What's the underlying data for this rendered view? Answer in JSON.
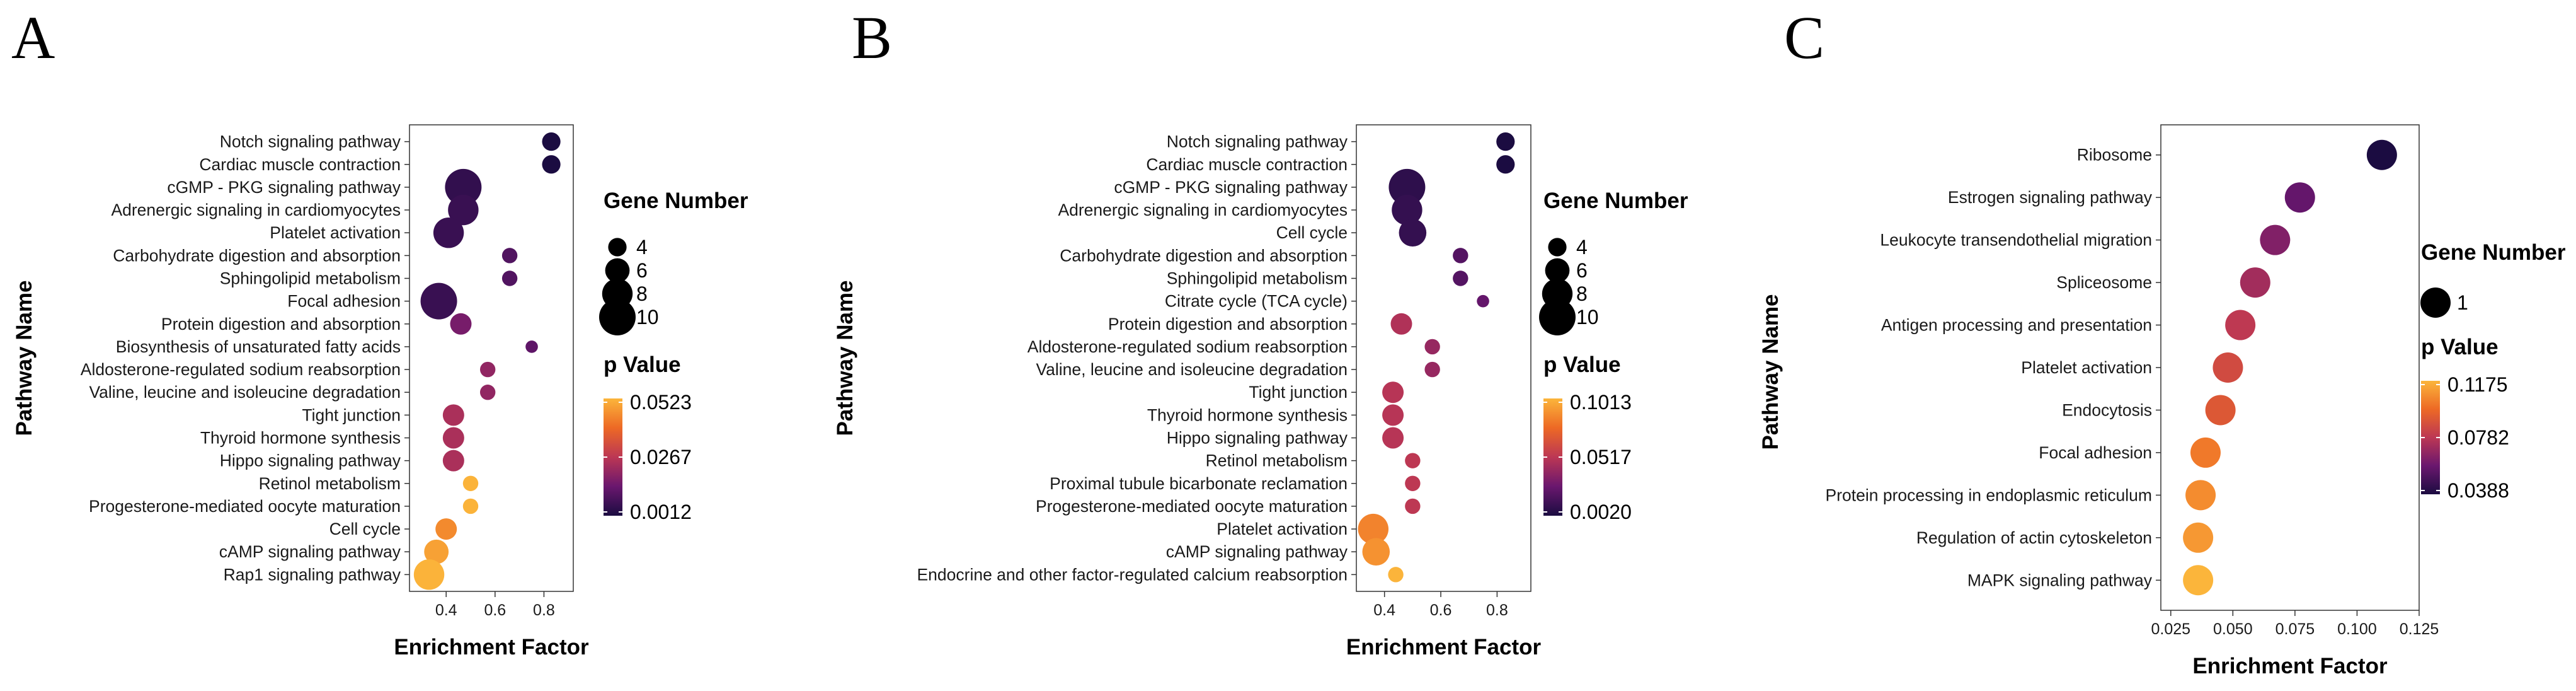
{
  "chart_data": [
    {
      "type": "scatter",
      "panel": "A",
      "xlabel": "Enrichment Factor",
      "ylabel": "Pathway Name",
      "xlim": [
        0.25,
        0.92
      ],
      "xticks": [
        0.4,
        0.6,
        0.8
      ],
      "xtick_labels": [
        "0.4",
        "0.6",
        "0.8"
      ],
      "p_range": [
        0.0012,
        0.0523
      ],
      "p_labels": [
        "0.0523",
        "0.0267",
        "0.0012"
      ],
      "legend_size_title": "Gene Number",
      "legend_sizes": [
        4,
        6,
        8,
        10
      ],
      "legend_size_labels": [
        "4",
        "6",
        "8",
        "10"
      ],
      "legend_color_title": "p Value",
      "categories": [
        "Notch signaling pathway",
        "Cardiac muscle contraction",
        "cGMP - PKG signaling pathway",
        "Adrenergic signaling in cardiomyocytes",
        "Platelet activation",
        "Carbohydrate digestion and absorption",
        "Sphingolipid metabolism",
        "Focal adhesion",
        "Protein digestion and absorption",
        "Biosynthesis of unsaturated fatty acids",
        "Aldosterone-regulated sodium reabsorption",
        "Valine, leucine and isoleucine degradation",
        "Tight junction",
        "Thyroid hormone synthesis",
        "Hippo signaling pathway",
        "Retinol metabolism",
        "Progesterone-mediated oocyte maturation",
        "Cell cycle",
        "cAMP signaling pathway",
        "Rap1 signaling pathway"
      ],
      "x": [
        0.83,
        0.83,
        0.47,
        0.47,
        0.41,
        0.66,
        0.66,
        0.37,
        0.46,
        0.75,
        0.57,
        0.57,
        0.43,
        0.43,
        0.43,
        0.5,
        0.5,
        0.4,
        0.36,
        0.33
      ],
      "gene_number": [
        4,
        4,
        10,
        8,
        8,
        3,
        3,
        10,
        5,
        2,
        3,
        3,
        5,
        5,
        5,
        3,
        3,
        5,
        6,
        8
      ],
      "p_value": [
        0.0012,
        0.0012,
        0.005,
        0.006,
        0.006,
        0.01,
        0.01,
        0.006,
        0.016,
        0.012,
        0.02,
        0.02,
        0.024,
        0.024,
        0.024,
        0.052,
        0.052,
        0.045,
        0.049,
        0.052
      ]
    },
    {
      "type": "scatter",
      "panel": "B",
      "xlabel": "Enrichment Factor",
      "ylabel": "Pathway Name",
      "xlim": [
        0.3,
        0.92
      ],
      "xticks": [
        0.4,
        0.6,
        0.8
      ],
      "xtick_labels": [
        "0.4",
        "0.6",
        "0.8"
      ],
      "p_range": [
        0.002,
        0.1013
      ],
      "p_labels": [
        "0.1013",
        "0.0517",
        "0.0020"
      ],
      "legend_size_title": "Gene Number",
      "legend_sizes": [
        4,
        6,
        8,
        10
      ],
      "legend_size_labels": [
        "4",
        "6",
        "8",
        "10"
      ],
      "legend_color_title": "p Value",
      "categories": [
        "Notch signaling pathway",
        "Cardiac muscle contraction",
        "cGMP - PKG signaling pathway",
        "Adrenergic signaling in cardiomyocytes",
        "Cell cycle",
        "Carbohydrate digestion and absorption",
        "Sphingolipid metabolism",
        "Citrate cycle (TCA cycle)",
        "Protein digestion and absorption",
        "Aldosterone-regulated sodium reabsorption",
        "Valine, leucine and isoleucine degradation",
        "Tight junction",
        "Thyroid hormone synthesis",
        "Hippo signaling pathway",
        "Retinol metabolism",
        "Proximal tubule bicarbonate reclamation",
        "Progesterone-mediated oocyte maturation",
        "Platelet activation",
        "cAMP signaling pathway",
        "Endocrine and other factor-regulated calcium reabsorption"
      ],
      "x": [
        0.83,
        0.83,
        0.48,
        0.48,
        0.5,
        0.67,
        0.67,
        0.75,
        0.46,
        0.57,
        0.57,
        0.43,
        0.43,
        0.43,
        0.5,
        0.5,
        0.5,
        0.36,
        0.37,
        0.44
      ],
      "gene_number": [
        4,
        4,
        10,
        8,
        7,
        3,
        3,
        2,
        5,
        3,
        3,
        5,
        5,
        5,
        3,
        3,
        3,
        8,
        7,
        3
      ],
      "p_value": [
        0.002,
        0.002,
        0.008,
        0.01,
        0.01,
        0.02,
        0.02,
        0.025,
        0.048,
        0.04,
        0.04,
        0.05,
        0.05,
        0.05,
        0.052,
        0.052,
        0.052,
        0.085,
        0.09,
        0.101
      ]
    },
    {
      "type": "scatter",
      "panel": "C",
      "xlabel": "Enrichment Factor",
      "ylabel": "Pathway Name",
      "xlim": [
        0.021,
        0.125
      ],
      "xticks": [
        0.025,
        0.05,
        0.075,
        0.1,
        0.125
      ],
      "xtick_labels": [
        "0.025",
        "0.050",
        "0.075",
        "0.100",
        "0.125"
      ],
      "p_range": [
        0.0388,
        0.1175
      ],
      "p_labels": [
        "0.1175",
        "0.0782",
        "0.0388"
      ],
      "legend_size_title": "Gene Number",
      "legend_sizes": [
        1
      ],
      "legend_size_labels": [
        "1"
      ],
      "legend_color_title": "p Value",
      "categories": [
        "Ribosome",
        "Estrogen signaling pathway",
        "Leukocyte transendothelial migration",
        "Spliceosome",
        "Antigen processing and presentation",
        "Platelet activation",
        "Endocytosis",
        "Focal adhesion",
        "Protein processing in endoplasmic reticulum",
        "Regulation of actin cytoskeleton",
        "MAPK signaling pathway"
      ],
      "x": [
        0.11,
        0.077,
        0.067,
        0.059,
        0.053,
        0.048,
        0.045,
        0.039,
        0.037,
        0.036,
        0.036
      ],
      "gene_number": [
        1,
        1,
        1,
        1,
        1,
        1,
        1,
        1,
        1,
        1,
        1
      ],
      "p_value": [
        0.0388,
        0.057,
        0.064,
        0.072,
        0.079,
        0.086,
        0.091,
        0.102,
        0.107,
        0.11,
        0.1175
      ]
    }
  ],
  "panel_labels": [
    "A",
    "B",
    "C"
  ],
  "colors": {
    "low_p": "#1b0c41",
    "mid_p": "#bc3754",
    "high_p": "#fbb53b",
    "axis": "#333333"
  }
}
